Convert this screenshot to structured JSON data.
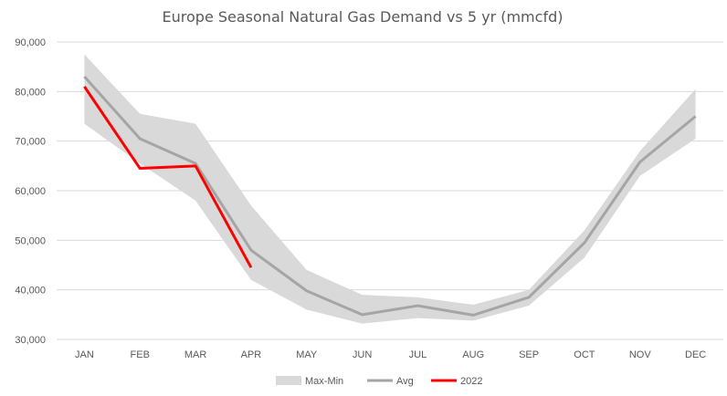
{
  "chart_data": {
    "type": "line",
    "title": "Europe Seasonal Natural Gas Demand vs 5 yr (mmcfd)",
    "categories": [
      "JAN",
      "FEB",
      "MAR",
      "APR",
      "MAY",
      "JUN",
      "JUL",
      "AUG",
      "SEP",
      "OCT",
      "NOV",
      "DEC"
    ],
    "ylim": [
      30000,
      90000
    ],
    "yticks": [
      30000,
      40000,
      50000,
      60000,
      70000,
      80000,
      90000
    ],
    "ytick_labels": [
      "30,000",
      "40,000",
      "50,000",
      "60,000",
      "70,000",
      "80,000",
      "90,000"
    ],
    "grid": true,
    "legend_position": "bottom",
    "series": [
      {
        "name": "Max-Min",
        "kind": "band",
        "color": "#d9d9d9",
        "max": [
          87500,
          75500,
          73500,
          57000,
          44000,
          39000,
          38500,
          37000,
          40000,
          52000,
          68000,
          80500
        ],
        "min": [
          73500,
          65500,
          58000,
          42000,
          36000,
          33200,
          34300,
          33800,
          36800,
          46500,
          63000,
          70500
        ]
      },
      {
        "name": "Avg",
        "kind": "line",
        "color": "#a5a5a5",
        "values": [
          83000,
          70500,
          65500,
          48000,
          39800,
          35000,
          36800,
          34900,
          38500,
          49500,
          65800,
          75000
        ]
      },
      {
        "name": "2022",
        "kind": "line",
        "color": "#ff0000",
        "values": [
          81000,
          64500,
          65000,
          44500,
          null,
          null,
          null,
          null,
          null,
          null,
          null,
          null
        ]
      }
    ]
  }
}
